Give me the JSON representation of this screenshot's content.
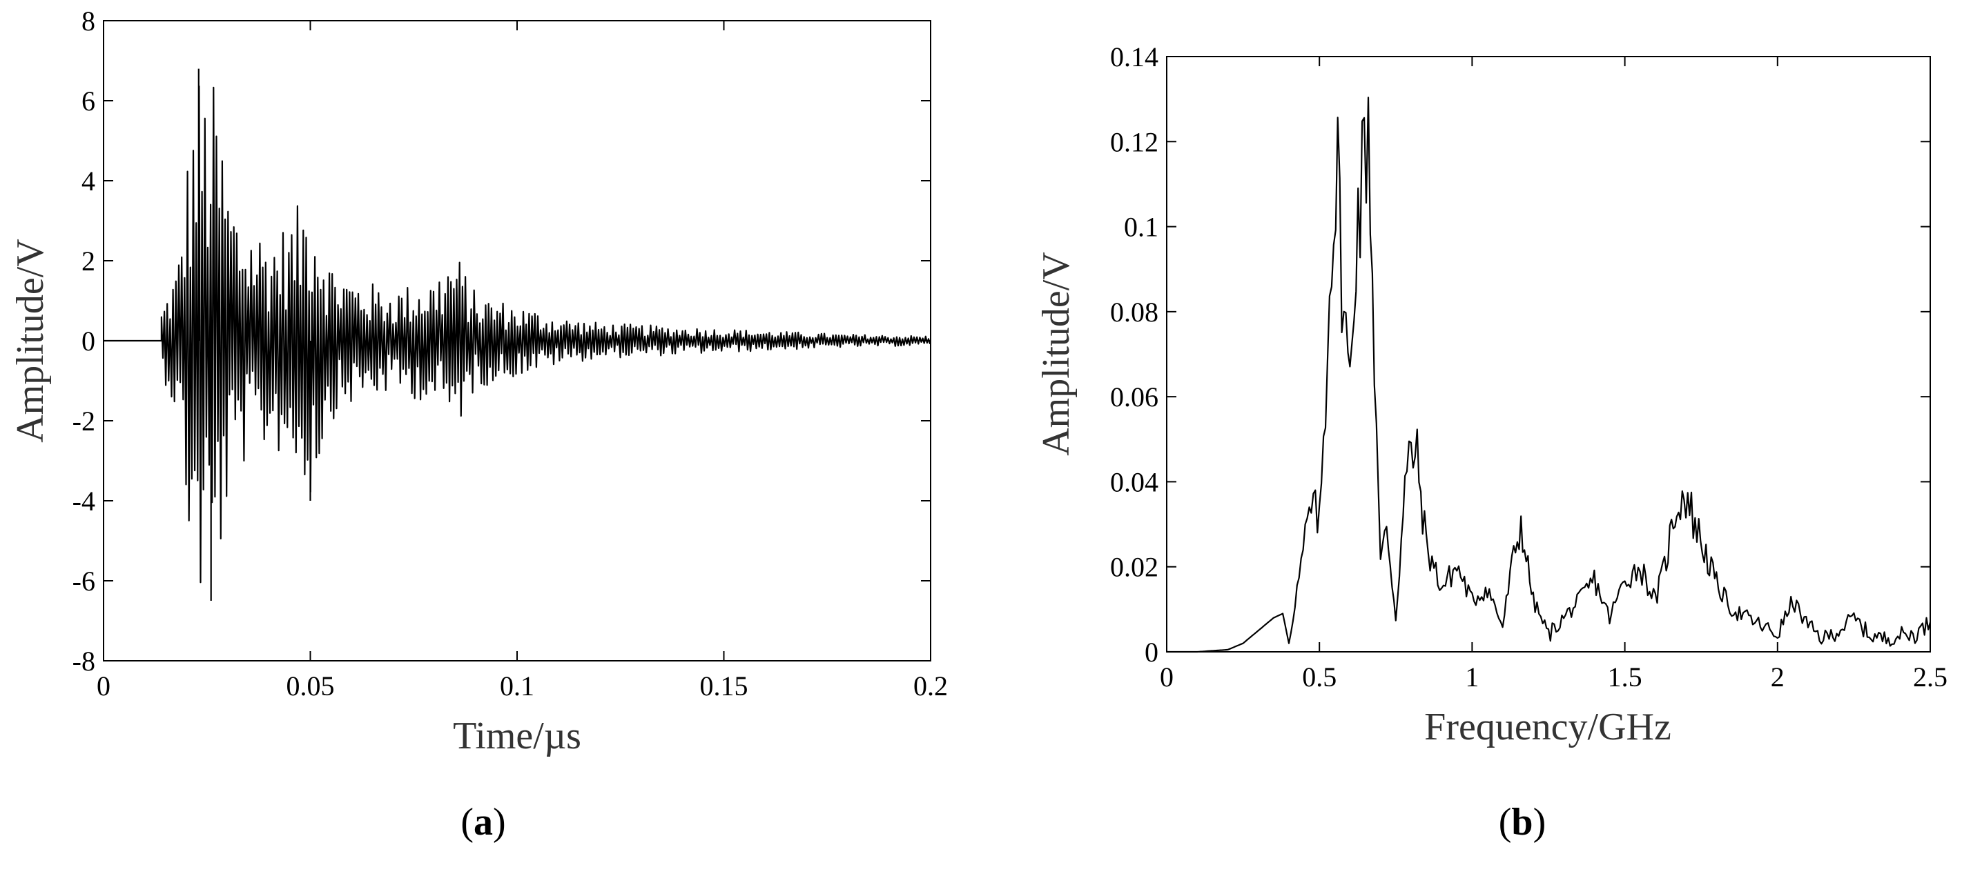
{
  "chart_data": [
    {
      "type": "line",
      "panel_label": "a",
      "xlabel": "Time/µs",
      "ylabel": "Amplitude/V",
      "xlim": [
        0,
        0.2
      ],
      "ylim": [
        -8,
        8
      ],
      "x_ticks": [
        "0",
        "0.05",
        "0.1",
        "0.15",
        "0.2"
      ],
      "y_ticks": [
        "-8",
        "-6",
        "-4",
        "-2",
        "0",
        "2",
        "4",
        "6",
        "8"
      ],
      "grid": false,
      "envelope": [
        [
          0.014,
          0.8
        ],
        [
          0.018,
          2.0
        ],
        [
          0.021,
          5.5
        ],
        [
          0.023,
          6.8
        ],
        [
          0.025,
          6.3
        ],
        [
          0.027,
          6.5
        ],
        [
          0.03,
          4.2
        ],
        [
          0.033,
          3.2
        ],
        [
          0.04,
          2.7
        ],
        [
          0.045,
          3.0
        ],
        [
          0.05,
          4.0
        ],
        [
          0.055,
          2.0
        ],
        [
          0.06,
          1.6
        ],
        [
          0.07,
          1.3
        ],
        [
          0.08,
          1.6
        ],
        [
          0.085,
          2.3
        ],
        [
          0.09,
          1.2
        ],
        [
          0.1,
          0.9
        ],
        [
          0.11,
          0.6
        ],
        [
          0.12,
          0.45
        ],
        [
          0.14,
          0.35
        ],
        [
          0.16,
          0.25
        ],
        [
          0.18,
          0.16
        ],
        [
          0.2,
          0.12
        ]
      ],
      "noteworthy_points": [
        {
          "x": 0.023,
          "y": 6.8
        },
        {
          "x": 0.026,
          "y": -6.5
        },
        {
          "x": 0.05,
          "y": -4.0
        }
      ]
    },
    {
      "type": "line",
      "panel_label": "b",
      "xlabel": "Frequency/GHz",
      "ylabel": "Amplitude/V",
      "xlim": [
        0,
        2.5
      ],
      "ylim": [
        0,
        0.14
      ],
      "x_ticks": [
        "0",
        "0.5",
        "1",
        "1.5",
        "2",
        "2.5"
      ],
      "y_ticks": [
        "0",
        "0.02",
        "0.04",
        "0.06",
        "0.08",
        "0.1",
        "0.12",
        "0.14"
      ],
      "grid": false,
      "x": [
        0,
        0.1,
        0.2,
        0.25,
        0.3,
        0.35,
        0.38,
        0.4,
        0.42,
        0.44,
        0.46,
        0.48,
        0.5,
        0.52,
        0.54,
        0.56,
        0.58,
        0.6,
        0.62,
        0.64,
        0.66,
        0.68,
        0.7,
        0.72,
        0.75,
        0.78,
        0.8,
        0.82,
        0.85,
        0.9,
        0.95,
        1.0,
        1.05,
        1.1,
        1.13,
        1.16,
        1.2,
        1.25,
        1.3,
        1.35,
        1.4,
        1.45,
        1.5,
        1.55,
        1.6,
        1.63,
        1.67,
        1.7,
        1.73,
        1.76,
        1.8,
        1.85,
        1.9,
        1.95,
        2.0,
        2.05,
        2.1,
        2.15,
        2.2,
        2.25,
        2.3,
        2.35,
        2.4,
        2.45,
        2.5
      ],
      "y": [
        0,
        0,
        0.0005,
        0.002,
        0.005,
        0.008,
        0.009,
        0.002,
        0.012,
        0.02,
        0.03,
        0.034,
        0.03,
        0.06,
        0.1,
        0.111,
        0.08,
        0.062,
        0.1,
        0.11,
        0.128,
        0.07,
        0.02,
        0.03,
        0.008,
        0.038,
        0.048,
        0.045,
        0.025,
        0.015,
        0.02,
        0.012,
        0.015,
        0.006,
        0.02,
        0.03,
        0.012,
        0.004,
        0.008,
        0.012,
        0.017,
        0.008,
        0.017,
        0.02,
        0.012,
        0.02,
        0.035,
        0.037,
        0.03,
        0.024,
        0.016,
        0.01,
        0.008,
        0.006,
        0.004,
        0.012,
        0.006,
        0.003,
        0.005,
        0.008,
        0.004,
        0.003,
        0.004,
        0.004,
        0.007
      ]
    }
  ]
}
